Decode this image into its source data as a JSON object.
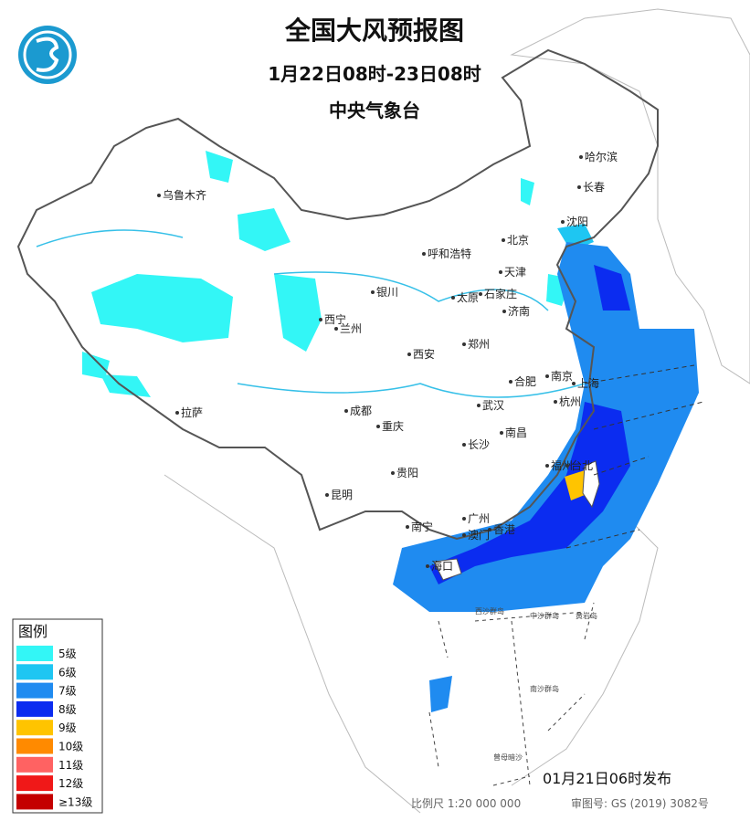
{
  "header": {
    "title": "全国大风预报图",
    "period": "1月22日08时-23日08时",
    "issuer": "中央气象台"
  },
  "legend": {
    "title": "图例",
    "items": [
      {
        "label": "5级",
        "color": "#33f6f6"
      },
      {
        "label": "6级",
        "color": "#1ec6f2"
      },
      {
        "label": "7级",
        "color": "#1f8bf0"
      },
      {
        "label": "8级",
        "color": "#0b2cf0"
      },
      {
        "label": "9级",
        "color": "#ffc400"
      },
      {
        "label": "10级",
        "color": "#ff8a00"
      },
      {
        "label": "11级",
        "color": "#ff6262"
      },
      {
        "label": "12级",
        "color": "#f01818"
      },
      {
        "label": "≥13级",
        "color": "#c40000"
      }
    ]
  },
  "cities": [
    "乌鲁木齐",
    "哈尔滨",
    "长春",
    "沈阳",
    "北京",
    "天津",
    "呼和浩特",
    "银川",
    "太原",
    "石家庄",
    "济南",
    "西宁",
    "兰州",
    "郑州",
    "西安",
    "南京",
    "上海",
    "合肥",
    "杭州",
    "武汉",
    "成都",
    "拉萨",
    "重庆",
    "南昌",
    "长沙",
    "福州",
    "台北",
    "贵阳",
    "昆明",
    "广州",
    "南宁",
    "澳门",
    "香港",
    "海口"
  ],
  "islands": [
    "西沙群岛",
    "中沙群岛",
    "黄岩岛",
    "南沙群岛",
    "曾母暗沙"
  ],
  "footer": {
    "release": "01月21日06时发布",
    "scale": "比例尺 1:20 000 000",
    "approval": "审图号: GS (2019) 3082号"
  }
}
